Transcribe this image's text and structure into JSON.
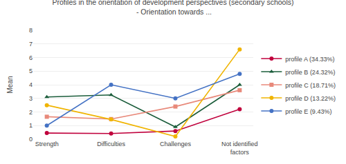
{
  "chart_data": {
    "type": "line",
    "title": "Profiles in the orientation of development perspectives (secondary schools)\n - Orientation towards ...",
    "ylabel": "Mean",
    "categories": [
      "Strength",
      "Difficulties",
      "Challenges",
      "Not identified\nfactors"
    ],
    "series": [
      {
        "name": "profile A (34.33%)",
        "color": "#c0003c",
        "marker": "circle",
        "values": [
          0.45,
          0.42,
          0.6,
          2.2
        ]
      },
      {
        "name": "profile B (24.32%)",
        "color": "#1a5c3a",
        "marker": "triangle-up",
        "values": [
          3.1,
          3.25,
          0.9,
          4.0
        ]
      },
      {
        "name": "profile C (18.71%)",
        "color": "#e8897a",
        "marker": "square",
        "values": [
          1.65,
          1.48,
          2.4,
          3.6
        ]
      },
      {
        "name": "profile D (13.22%)",
        "color": "#f0b400",
        "marker": "circle",
        "values": [
          2.5,
          1.45,
          0.2,
          6.6
        ]
      },
      {
        "name": "profile E (9.43%)",
        "color": "#4472c4",
        "marker": "circle",
        "values": [
          1.0,
          4.0,
          3.0,
          4.8
        ]
      }
    ],
    "ylim": [
      0,
      8
    ],
    "yticks": [
      0,
      1,
      2,
      3,
      4,
      5,
      6,
      7,
      8
    ],
    "grid": true,
    "legend": "right"
  }
}
